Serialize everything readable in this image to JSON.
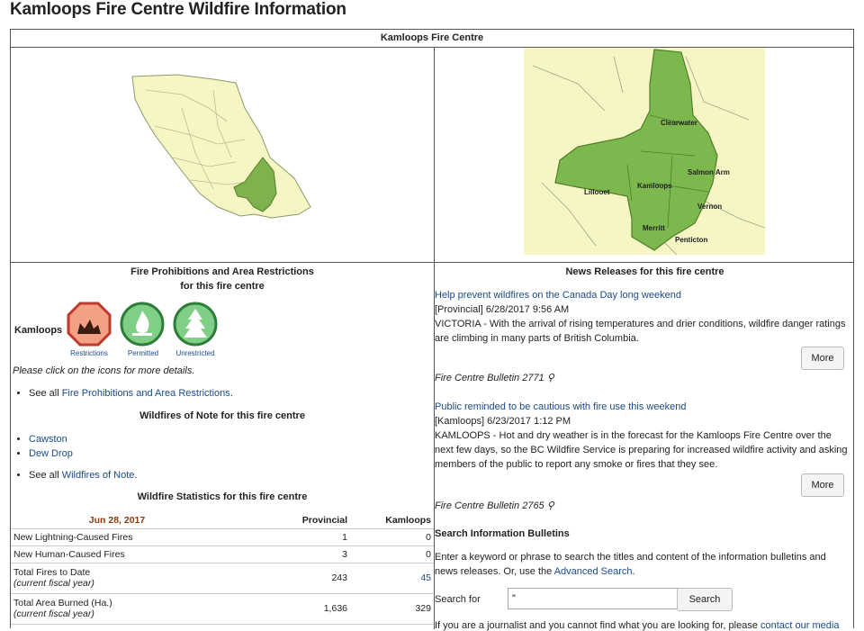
{
  "page": {
    "title": "Kamloops Fire Centre Wildfire Information"
  },
  "header": {
    "centre": "Kamloops Fire Centre"
  },
  "maps": {
    "right_labels": [
      "Clearwater",
      "Salmon Arm",
      "Kamloops",
      "Lillooet",
      "Vernon",
      "Merritt",
      "Penticton"
    ]
  },
  "prohibitions": {
    "title_line1": "Fire Prohibitions and Area Restrictions",
    "title_line2": "for this fire centre",
    "region": "Kamloops",
    "icons": [
      "Restrictions",
      "Permitted",
      "Unrestricted"
    ],
    "click_note": "Please click on the icons for more details.",
    "see_all_prefix": "See all ",
    "see_all_link": "Fire Prohibitions and Area Restrictions",
    "see_all_suffix": "."
  },
  "wildfires": {
    "title": "Wildfires of Note for this fire centre",
    "items": [
      "Cawston",
      "Dew Drop"
    ],
    "see_all_prefix": "See all ",
    "see_all_link": "Wildfires of Note",
    "see_all_suffix": "."
  },
  "stats": {
    "title": "Wildfire Statistics for this fire centre",
    "date": "Jun 28, 2017",
    "col_prov": "Provincial",
    "col_kam": "Kamloops",
    "rows": [
      {
        "label": "New Lightning-Caused Fires",
        "sub": "",
        "prov": "1",
        "kam": "0"
      },
      {
        "label": "New Human-Caused Fires",
        "sub": "",
        "prov": "3",
        "kam": "0"
      },
      {
        "label": "Total Fires to Date",
        "sub": "(current fiscal year)",
        "prov": "243",
        "kam": "45"
      },
      {
        "label": "Total Area Burned (Ha.)",
        "sub": "(current fiscal year)",
        "prov": "1,636",
        "kam": "329"
      }
    ]
  },
  "news": {
    "title": "News Releases for this fire centre",
    "items": [
      {
        "headline": "Help prevent wildfires on the Canada Day long weekend",
        "meta": "[Provincial] 6/28/2017 9:56 AM",
        "body": "VICTORIA - With the arrival of rising temperatures and drier conditions, wildfire danger ratings are climbing in many parts of British Columbia.",
        "more": "More",
        "bulletin": "Fire Centre Bulletin 2771"
      },
      {
        "headline": "Public reminded to be cautious with fire use this weekend",
        "meta": "[Kamloops] 6/23/2017 1:12 PM",
        "body": "KAMLOOPS - Hot and dry weather is in the forecast for the Kamloops Fire Centre over the next few days, so the BC Wildfire Service is preparing for increased wildfire activity and asking members of the public to report any smoke or fires that they see.",
        "more": "More",
        "bulletin": "Fire Centre Bulletin 2765"
      }
    ]
  },
  "search": {
    "title": "Search Information Bulletins",
    "desc_prefix": "Enter a keyword or phrase to search the titles and content of the information bulletins and news releases. Or, use the ",
    "desc_link": "Advanced Search",
    "desc_suffix": ".",
    "label": "Search for",
    "value": "\"",
    "button": "Search",
    "footer_prefix": "If you are a journalist and you cannot find what you are looking for, please ",
    "footer_link": "contact our media"
  }
}
